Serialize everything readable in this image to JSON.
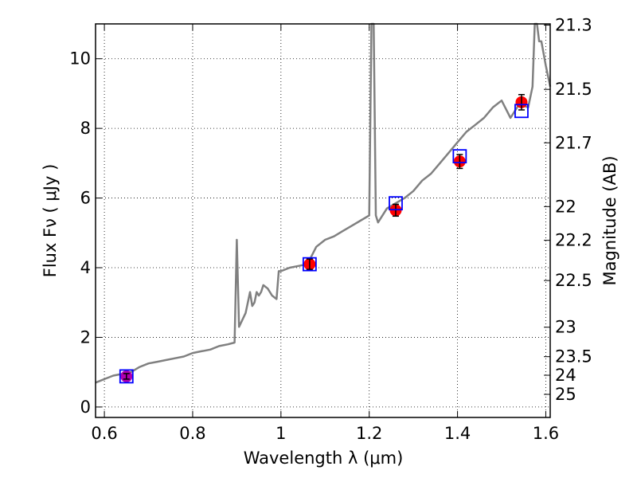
{
  "chart_data": {
    "type": "scatter",
    "xlabel": "Wavelength  λ (μm)",
    "ylabel": "Flux  Fν  ( μJy )",
    "y2label": "Magnitude (AB)",
    "xlim": [
      0.58,
      1.61
    ],
    "ylim": [
      -0.3,
      11.0
    ],
    "x_ticks": [
      "0.6",
      "0.8",
      "1",
      "1.2",
      "1.4",
      "1.6"
    ],
    "x_tick_values": [
      0.6,
      0.8,
      1.0,
      1.2,
      1.4,
      1.6
    ],
    "y_ticks": [
      "0",
      "2",
      "4",
      "6",
      "8",
      "10"
    ],
    "y_tick_values": [
      0,
      2,
      4,
      6,
      8,
      10
    ],
    "y2_ticks": [
      "21.3",
      "21.5",
      "21.7",
      "22",
      "22.2",
      "22.5",
      "23",
      "23.5",
      "24",
      "25"
    ],
    "grid": true,
    "colors": {
      "model_spectrum": "#808080",
      "observed": "#ff0000",
      "observed_optical": "#b000b0",
      "model_photometry": "#0000ff",
      "errorbar": "#000000"
    },
    "series": [
      {
        "kind": "model_spectrum",
        "x": [
          0.58,
          0.6,
          0.62,
          0.64,
          0.66,
          0.68,
          0.7,
          0.72,
          0.74,
          0.76,
          0.78,
          0.8,
          0.82,
          0.84,
          0.86,
          0.88,
          0.895,
          0.9,
          0.905,
          0.92,
          0.93,
          0.935,
          0.94,
          0.945,
          0.95,
          0.955,
          0.96,
          0.97,
          0.98,
          0.99,
          0.995,
          1.0,
          1.02,
          1.04,
          1.06,
          1.08,
          1.1,
          1.12,
          1.14,
          1.16,
          1.18,
          1.2,
          1.205,
          1.21,
          1.215,
          1.22,
          1.24,
          1.26,
          1.28,
          1.3,
          1.32,
          1.34,
          1.36,
          1.38,
          1.4,
          1.42,
          1.44,
          1.46,
          1.48,
          1.5,
          1.52,
          1.54,
          1.56,
          1.57,
          1.575,
          1.58,
          1.585,
          1.59,
          1.6,
          1.61
        ],
        "y": [
          0.7,
          0.8,
          0.9,
          0.95,
          1.0,
          1.15,
          1.25,
          1.3,
          1.35,
          1.4,
          1.45,
          1.55,
          1.6,
          1.65,
          1.75,
          1.8,
          1.85,
          4.8,
          2.3,
          2.7,
          3.3,
          2.9,
          3.0,
          3.3,
          3.2,
          3.3,
          3.5,
          3.4,
          3.2,
          3.1,
          3.9,
          3.9,
          4.0,
          4.05,
          4.1,
          4.6,
          4.8,
          4.9,
          5.05,
          5.2,
          5.35,
          5.5,
          11.0,
          11.0,
          5.5,
          5.3,
          5.7,
          5.85,
          6.0,
          6.2,
          6.5,
          6.7,
          7.0,
          7.3,
          7.6,
          7.9,
          8.1,
          8.3,
          8.6,
          8.8,
          8.3,
          8.7,
          8.6,
          9.2,
          11.0,
          11.0,
          10.5,
          10.5,
          9.8,
          9.2
        ]
      },
      {
        "kind": "observed",
        "x": [
          1.065,
          1.26,
          1.405,
          1.545
        ],
        "y": [
          4.1,
          5.65,
          7.05,
          8.75
        ],
        "yerr": [
          0.15,
          0.17,
          0.2,
          0.22
        ]
      },
      {
        "kind": "observed_optical",
        "x": [
          0.65
        ],
        "y": [
          0.88
        ],
        "yerr": [
          0.08
        ]
      },
      {
        "kind": "model_photometry",
        "x": [
          0.65,
          1.065,
          1.26,
          1.405,
          1.545
        ],
        "y": [
          0.88,
          4.1,
          5.85,
          7.2,
          8.5
        ]
      }
    ]
  }
}
